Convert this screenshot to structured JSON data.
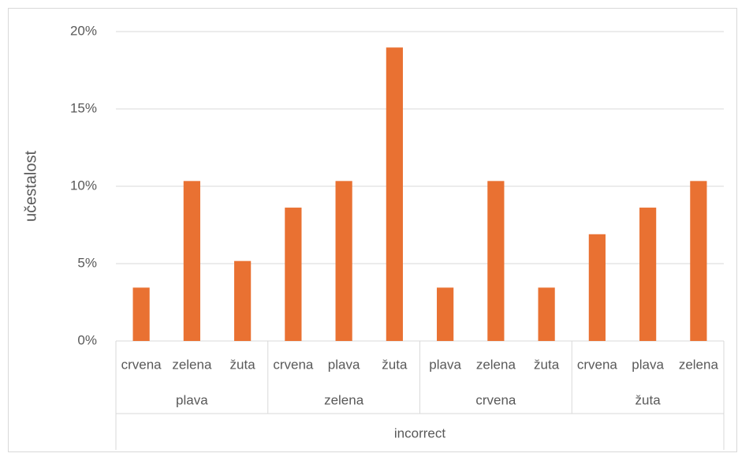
{
  "chart_data": {
    "type": "bar",
    "y_label": "učestalost",
    "categories": [
      "crvena",
      "zelena",
      "žuta",
      "crvena",
      "plava",
      "žuta",
      "plava",
      "zelena",
      "žuta",
      "crvena",
      "plava",
      "zelena"
    ],
    "groups": [
      "plava",
      "zelena",
      "crvena",
      "žuta"
    ],
    "super_group": "incorrect",
    "values": [
      3.45,
      10.34,
      5.17,
      8.62,
      10.34,
      18.97,
      3.45,
      10.34,
      3.45,
      6.9,
      8.62,
      10.34
    ],
    "color": "#e97132",
    "ylim": [
      0,
      20
    ],
    "yticks": [
      {
        "value": 0,
        "label": "0%"
      },
      {
        "value": 5,
        "label": "5%"
      },
      {
        "value": 10,
        "label": "10%"
      },
      {
        "value": 15,
        "label": "15%"
      },
      {
        "value": 20,
        "label": "20%"
      }
    ],
    "grid": true
  }
}
